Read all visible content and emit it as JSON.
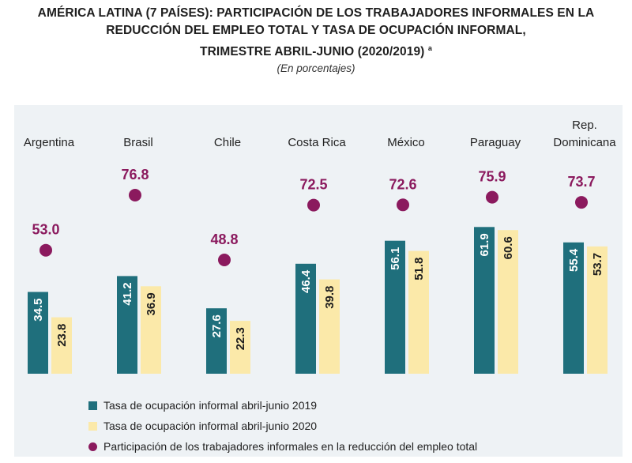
{
  "title": {
    "line1": "AMÉRICA LATINA (7 PAÍSES): PARTICIPACIÓN DE LOS TRABAJADORES INFORMALES EN LA",
    "line2": "REDUCCIÓN DEL EMPLEO TOTAL Y TASA DE OCUPACIÓN INFORMAL,",
    "line3": "TRIMESTRE ABRIL-JUNIO (2020/2019)",
    "footnote_mark": "a",
    "subtitle": "(En porcentajes)"
  },
  "colors": {
    "bar_2019": "#1f6f7c",
    "bar_2020": "#fbe9a9",
    "dot": "#8b1a5e",
    "label_2019": "#ffffff",
    "label_2020": "#1e1e1e",
    "dot_label": "#8b1a5e"
  },
  "chart_data": {
    "type": "bar",
    "categories": [
      "Argentina",
      "Brasil",
      "Chile",
      "Costa Rica",
      "México",
      "Paraguay",
      "Rep. Dominicana"
    ],
    "series": [
      {
        "name": "Tasa de ocupación informal abril-junio 2019",
        "kind": "bar",
        "values": [
          34.5,
          41.2,
          27.6,
          46.4,
          56.1,
          61.9,
          55.4
        ]
      },
      {
        "name": "Tasa de ocupación informal abril-junio 2020",
        "kind": "bar",
        "values": [
          23.8,
          36.9,
          22.3,
          39.8,
          51.8,
          60.6,
          53.7
        ]
      },
      {
        "name": "Participación de los trabajadores informales en la reducción del empleo total",
        "kind": "dot",
        "values": [
          53.0,
          76.8,
          48.8,
          72.5,
          72.6,
          75.9,
          73.7
        ]
      }
    ],
    "value_format": "one-decimal",
    "legend_position": "bottom-left",
    "grid": false
  }
}
